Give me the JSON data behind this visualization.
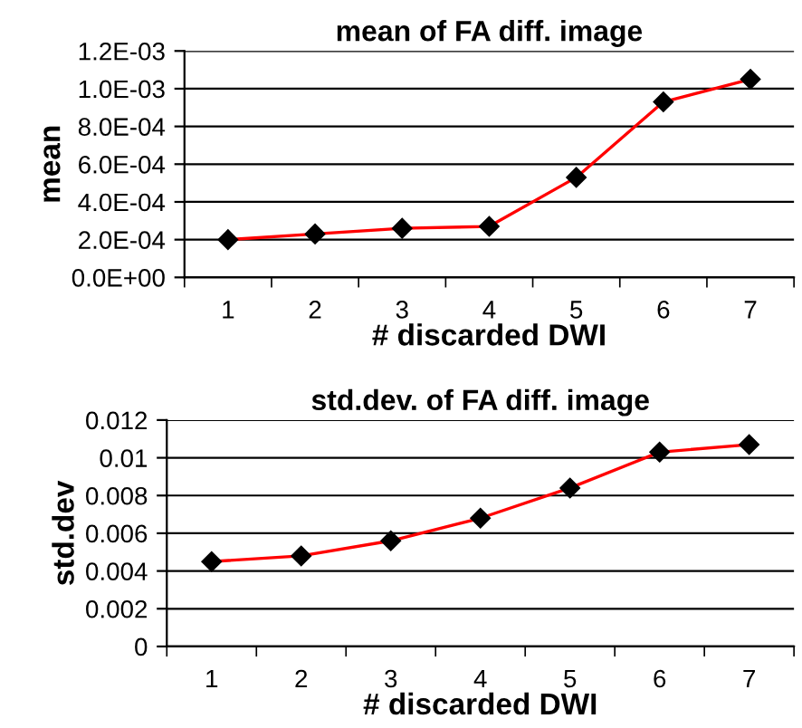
{
  "chart_data": [
    {
      "type": "line",
      "title": "mean of FA diff. image",
      "xlabel": "# discarded DWI",
      "ylabel": "mean",
      "categories": [
        "1",
        "2",
        "3",
        "4",
        "5",
        "6",
        "7"
      ],
      "series": [
        {
          "color": "#ff0000",
          "values": [
            0.0002,
            0.00023,
            0.00026,
            0.00027,
            0.00053,
            0.00093,
            0.00105
          ]
        }
      ],
      "ylim": [
        0,
        0.0012
      ],
      "yticks": [
        {
          "value": 0,
          "label": "0.0E+00"
        },
        {
          "value": 0.0002,
          "label": "2.0E-04"
        },
        {
          "value": 0.0004,
          "label": "4.0E-04"
        },
        {
          "value": 0.0006,
          "label": "6.0E-04"
        },
        {
          "value": 0.0008,
          "label": "8.0E-04"
        },
        {
          "value": 0.001,
          "label": "1.0E-03"
        },
        {
          "value": 0.0012,
          "label": "1.2E-03"
        }
      ],
      "grid": "y",
      "marker": "diamond",
      "line_style": "solid"
    },
    {
      "type": "line",
      "title": "std.dev. of FA diff. image",
      "xlabel": "# discarded DWI",
      "ylabel": "std.dev",
      "categories": [
        "1",
        "2",
        "3",
        "4",
        "5",
        "6",
        "7"
      ],
      "series": [
        {
          "color": "#ff0000",
          "values": [
            0.0045,
            0.0048,
            0.0056,
            0.0068,
            0.0084,
            0.0103,
            0.0107
          ]
        }
      ],
      "ylim": [
        0,
        0.012
      ],
      "yticks": [
        0,
        0.002,
        0.004,
        0.006,
        0.008,
        0.01,
        0.012
      ],
      "grid": "y",
      "marker": "diamond",
      "line_style": "solid"
    }
  ]
}
